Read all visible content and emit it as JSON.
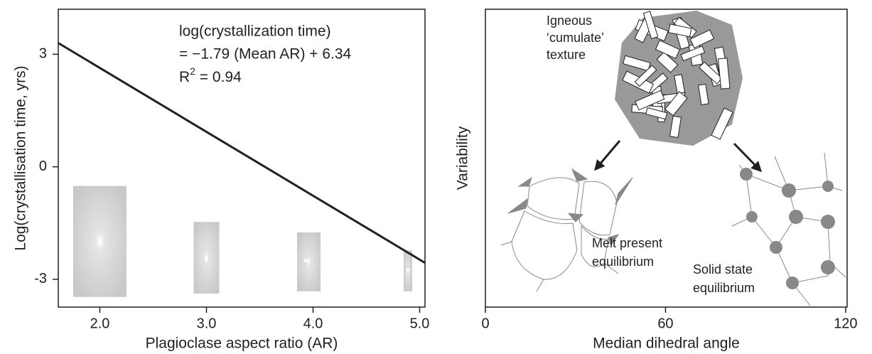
{
  "chart_data": [
    {
      "type": "scatter",
      "xlabel": "Plagioclase aspect ratio (AR)",
      "ylabel": "Log(crystallisation time, yrs)",
      "xlim": [
        1.61,
        5.05
      ],
      "ylim": [
        -3.74,
        4.2
      ],
      "xticks": [
        {
          "value": 2,
          "label": "2.0"
        },
        {
          "value": 3,
          "label": "3.0"
        },
        {
          "value": 4,
          "label": "4.0"
        },
        {
          "value": 5,
          "label": "5.0"
        }
      ],
      "yticks": [
        -3,
        0,
        3
      ],
      "x": [
        2.0,
        3.0,
        3.93,
        4.89
      ],
      "y": [
        -2.0,
        -2.46,
        -2.5,
        -2.75
      ],
      "x_range": [
        [
          1.75,
          2.25
        ],
        [
          2.88,
          3.12
        ],
        [
          3.85,
          4.07
        ],
        [
          4.85,
          4.93
        ]
      ],
      "y_range": [
        [
          -3.47,
          -0.51
        ],
        [
          -3.38,
          -1.47
        ],
        [
          -3.32,
          -1.75
        ],
        [
          -3.32,
          -2.23
        ]
      ],
      "trend_line": {
        "x": [
          1.61,
          5.05
        ],
        "y": [
          3.3,
          -2.56
        ],
        "color": "#231f20"
      },
      "annotation": [
        "log(crystallization time)",
        "= −1.79 (Mean AR) + 6.34"
      ],
      "r_squared": {
        "base": "R",
        "sup": "2",
        "rest": " = 0.94"
      }
    },
    {
      "type": "schematic",
      "xlabel": "Median dihedral angle",
      "ylabel": "Variability",
      "xlim": [
        0,
        120.5
      ],
      "xticks": [
        0,
        60,
        120
      ],
      "labels": {
        "cumulate": [
          "Igneous",
          "‘cumulate’",
          "texture"
        ],
        "melt": [
          "Melt present",
          "equilibrium"
        ],
        "solid": [
          "Solid state",
          "equilibrium"
        ]
      }
    }
  ]
}
